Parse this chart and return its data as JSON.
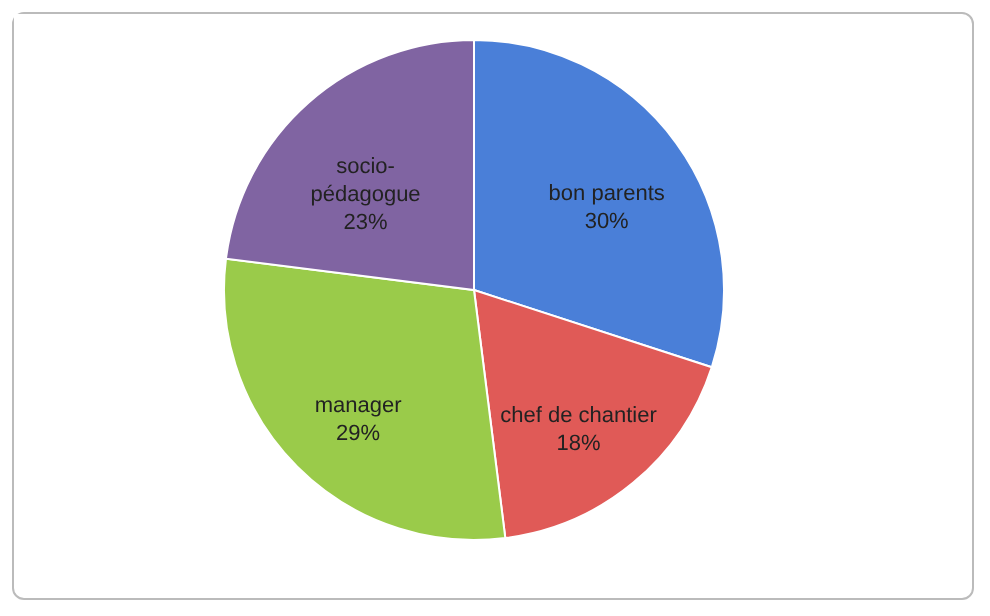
{
  "chart_data": {
    "type": "pie",
    "categories": [
      "bon parents",
      "chef de chantier",
      "manager",
      "socio-pédagogue"
    ],
    "values": [
      30,
      18,
      29,
      23
    ],
    "value_labels": [
      "30%",
      "18%",
      "29%",
      "23%"
    ],
    "colors": [
      "#4a7fd8",
      "#e05a57",
      "#9acb4a",
      "#8064a2"
    ],
    "legend": false
  }
}
